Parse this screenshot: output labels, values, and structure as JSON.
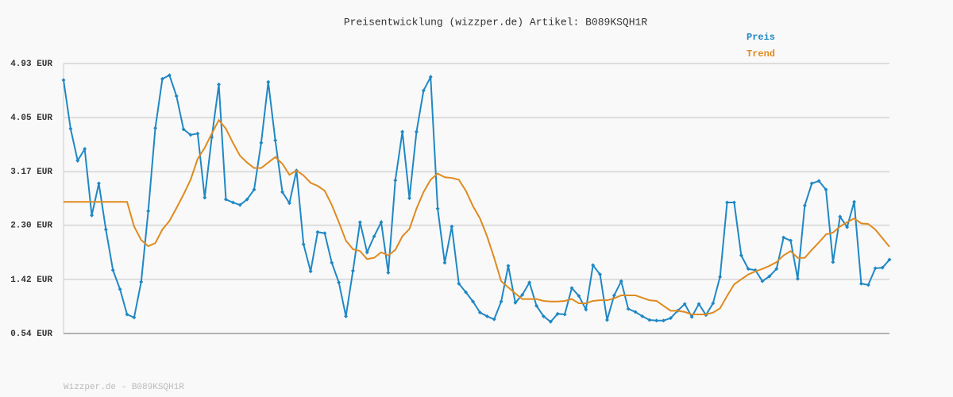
{
  "chart_data": {
    "type": "line",
    "title": "Preisentwicklung (wizzper.de) Artikel: B089KSQH1R",
    "ylim": [
      0.54,
      4.93
    ],
    "yticks": [
      {
        "value": 0.54,
        "label": "0.54 EUR"
      },
      {
        "value": 1.42,
        "label": "1.42 EUR"
      },
      {
        "value": 2.3,
        "label": "2.30 EUR"
      },
      {
        "value": 3.17,
        "label": "3.17 EUR"
      },
      {
        "value": 4.05,
        "label": "4.05 EUR"
      },
      {
        "value": 4.93,
        "label": "4.93 EUR"
      }
    ],
    "grid": true,
    "series": [
      {
        "name": "Preis",
        "color": "#1f88c4",
        "marker": "diamond",
        "values": [
          4.66,
          3.87,
          3.35,
          3.54,
          2.46,
          2.98,
          2.23,
          1.57,
          1.26,
          0.85,
          0.8,
          1.38,
          2.53,
          3.88,
          4.68,
          4.74,
          4.4,
          3.86,
          3.77,
          3.79,
          2.75,
          3.73,
          4.59,
          2.72,
          2.67,
          2.63,
          2.72,
          2.88,
          3.64,
          4.63,
          3.68,
          2.84,
          2.66,
          3.19,
          1.99,
          1.55,
          2.19,
          2.17,
          1.69,
          1.37,
          0.82,
          1.56,
          2.35,
          1.86,
          2.12,
          2.35,
          1.53,
          3.03,
          3.82,
          2.74,
          3.82,
          4.49,
          4.71,
          2.57,
          1.69,
          2.28,
          1.35,
          1.21,
          1.06,
          0.88,
          0.82,
          0.77,
          1.06,
          1.64,
          1.04,
          1.17,
          1.37,
          0.99,
          0.82,
          0.73,
          0.86,
          0.85,
          1.28,
          1.15,
          0.93,
          1.65,
          1.5,
          0.76,
          1.16,
          1.39,
          0.94,
          0.89,
          0.82,
          0.76,
          0.75,
          0.75,
          0.79,
          0.91,
          1.02,
          0.81,
          1.02,
          0.84,
          1.03,
          1.46,
          2.67,
          2.67,
          1.81,
          1.59,
          1.57,
          1.39,
          1.47,
          1.59,
          2.1,
          2.05,
          1.43,
          2.62,
          2.98,
          3.02,
          2.88,
          1.7,
          2.44,
          2.27,
          2.68,
          1.35,
          1.33,
          1.6,
          1.61,
          1.74
        ]
      },
      {
        "name": "Trend",
        "color": "#e08a1e",
        "values": [
          2.68,
          2.68,
          2.68,
          2.68,
          2.68,
          2.68,
          2.68,
          2.68,
          2.68,
          2.68,
          2.28,
          2.06,
          1.96,
          2.01,
          2.23,
          2.37,
          2.58,
          2.8,
          3.04,
          3.38,
          3.56,
          3.79,
          4.01,
          3.87,
          3.64,
          3.43,
          3.32,
          3.23,
          3.23,
          3.32,
          3.41,
          3.3,
          3.12,
          3.19,
          3.11,
          2.99,
          2.94,
          2.86,
          2.63,
          2.35,
          2.05,
          1.91,
          1.88,
          1.75,
          1.77,
          1.86,
          1.81,
          1.9,
          2.12,
          2.24,
          2.57,
          2.84,
          3.04,
          3.14,
          3.08,
          3.07,
          3.04,
          2.86,
          2.61,
          2.41,
          2.12,
          1.77,
          1.39,
          1.29,
          1.19,
          1.1,
          1.1,
          1.1,
          1.07,
          1.06,
          1.06,
          1.07,
          1.1,
          1.03,
          1.03,
          1.07,
          1.08,
          1.08,
          1.11,
          1.16,
          1.16,
          1.16,
          1.12,
          1.08,
          1.07,
          0.99,
          0.91,
          0.91,
          0.89,
          0.85,
          0.85,
          0.85,
          0.88,
          0.95,
          1.15,
          1.34,
          1.42,
          1.5,
          1.55,
          1.59,
          1.64,
          1.7,
          1.81,
          1.88,
          1.77,
          1.77,
          1.9,
          2.02,
          2.15,
          2.18,
          2.28,
          2.35,
          2.41,
          2.33,
          2.32,
          2.23,
          2.09,
          1.95
        ]
      }
    ],
    "footer": "Wizzper.de - B089KSQH1R"
  }
}
